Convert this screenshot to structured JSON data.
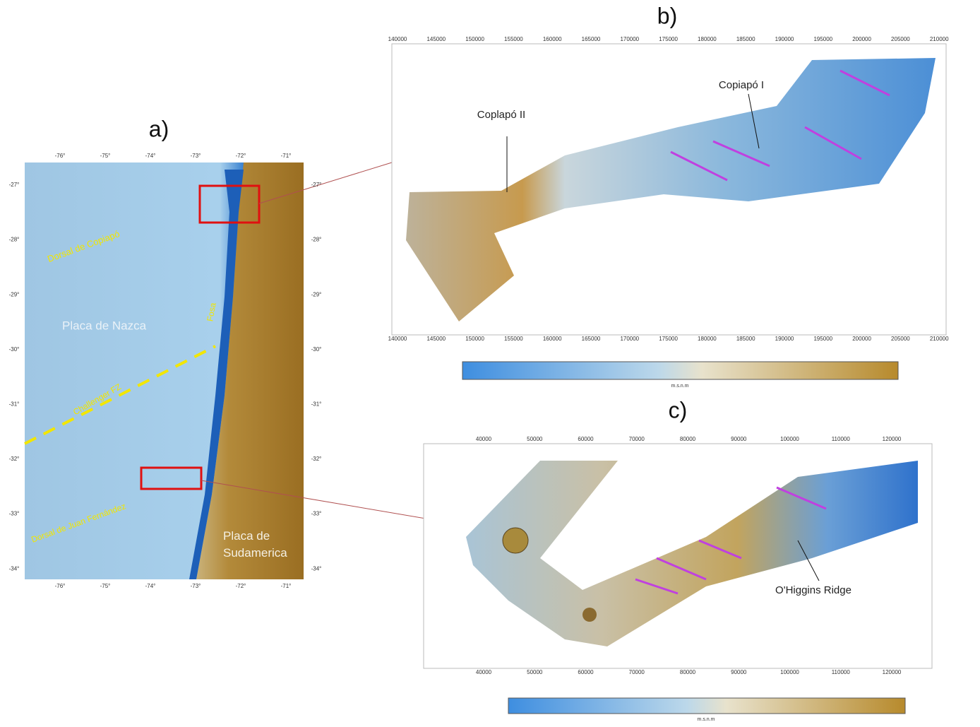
{
  "panels": [
    {
      "label": "a)",
      "lon_ticks": [
        "-76°",
        "-75°",
        "-74°",
        "-73°",
        "-72°",
        "-71°"
      ],
      "lat_ticks": [
        "-27°",
        "-28°",
        "-29°",
        "-30°",
        "-31°",
        "-32°",
        "-33°",
        "-34°"
      ],
      "annotations": [
        "Dorsal de Copiapó",
        "Placa de Nazca",
        "Fosa",
        "Challenger FZ",
        "Dorsal de Juan Fernández",
        "Placa de Sudamerica"
      ]
    },
    {
      "label": "b)",
      "x_ticks": [
        "140000",
        "145000",
        "150000",
        "155000",
        "160000",
        "165000",
        "170000",
        "175000",
        "180000",
        "185000",
        "190000",
        "195000",
        "200000",
        "205000",
        "210000"
      ],
      "annotations": [
        "Copiapó I",
        "Coplapó II"
      ],
      "colorbar_unit": "m.s.n.m"
    },
    {
      "label": "c)",
      "x_ticks": [
        "40000",
        "50000",
        "60000",
        "70000",
        "80000",
        "90000",
        "100000",
        "110000",
        "120000"
      ],
      "annotations": [
        "O'Higgins Ridge"
      ],
      "colorbar_unit": "m.s.n.m"
    }
  ]
}
